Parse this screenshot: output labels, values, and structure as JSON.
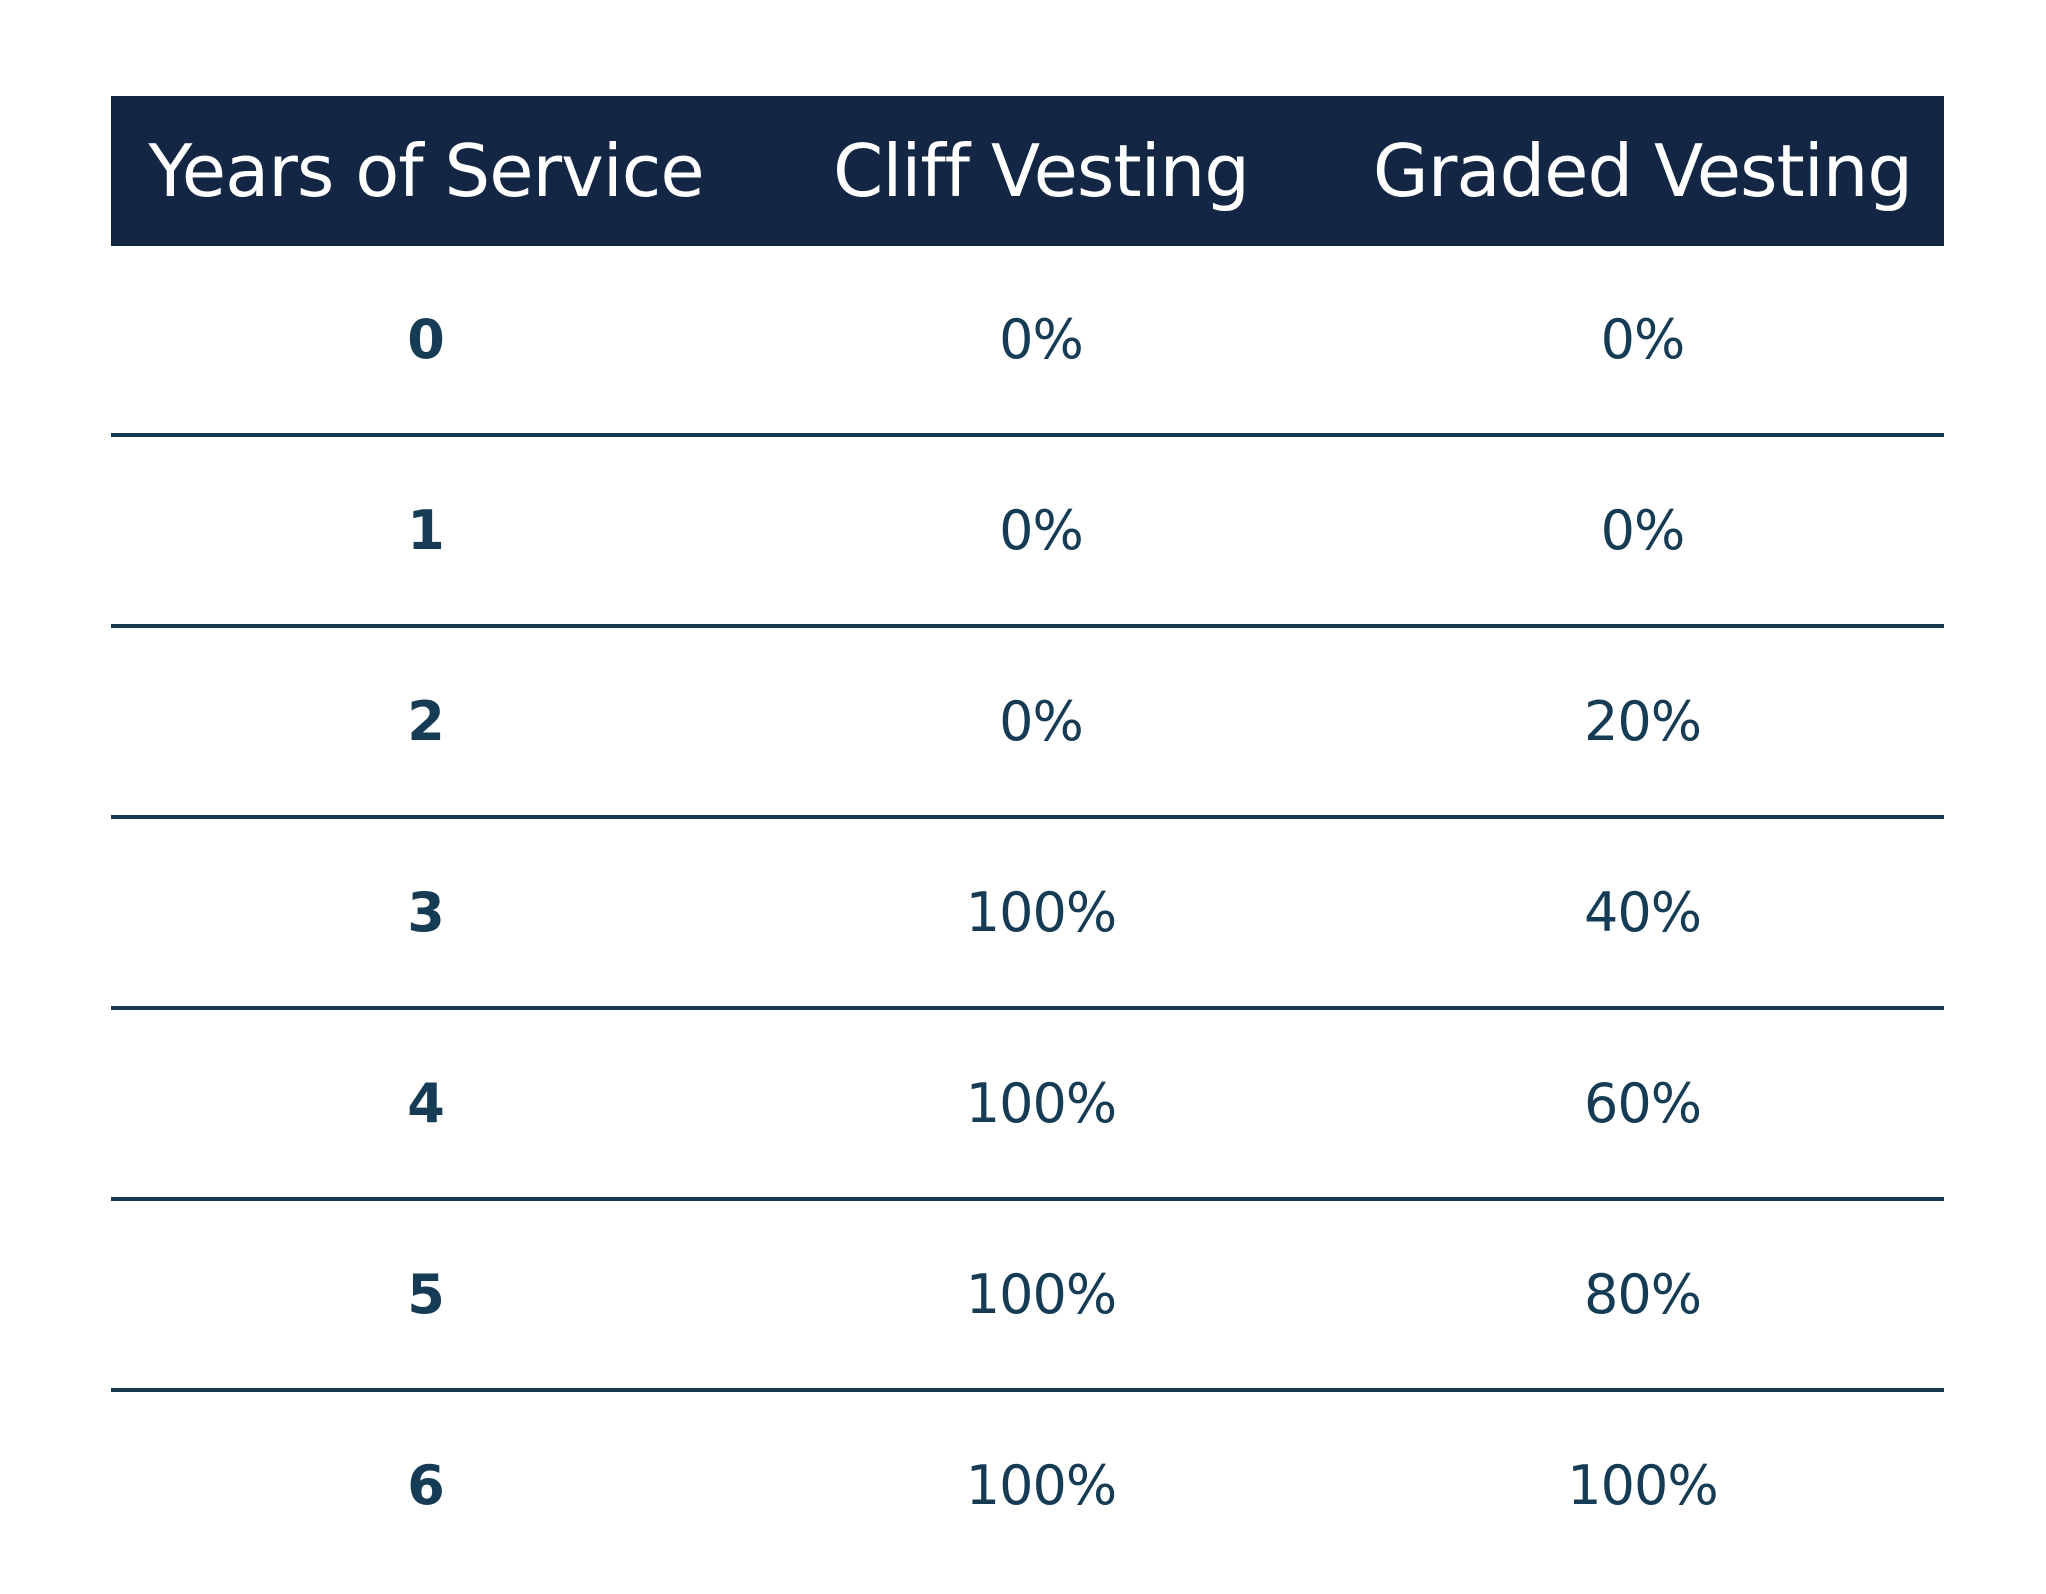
{
  "table": {
    "headers": {
      "years": "Years of Service",
      "cliff": "Cliff Vesting",
      "graded": "Graded Vesting"
    },
    "rows": [
      {
        "years": "0",
        "cliff": "0%",
        "graded": "0%"
      },
      {
        "years": "1",
        "cliff": "0%",
        "graded": "0%"
      },
      {
        "years": "2",
        "cliff": "0%",
        "graded": "20%"
      },
      {
        "years": "3",
        "cliff": "100%",
        "graded": "40%"
      },
      {
        "years": "4",
        "cliff": "100%",
        "graded": "60%"
      },
      {
        "years": "5",
        "cliff": "100%",
        "graded": "80%"
      },
      {
        "years": "6",
        "cliff": "100%",
        "graded": "100%"
      }
    ]
  },
  "colors": {
    "header_background": "#132643",
    "header_text": "#ffffff",
    "body_text": "#163c55",
    "divider": "#153a50"
  }
}
